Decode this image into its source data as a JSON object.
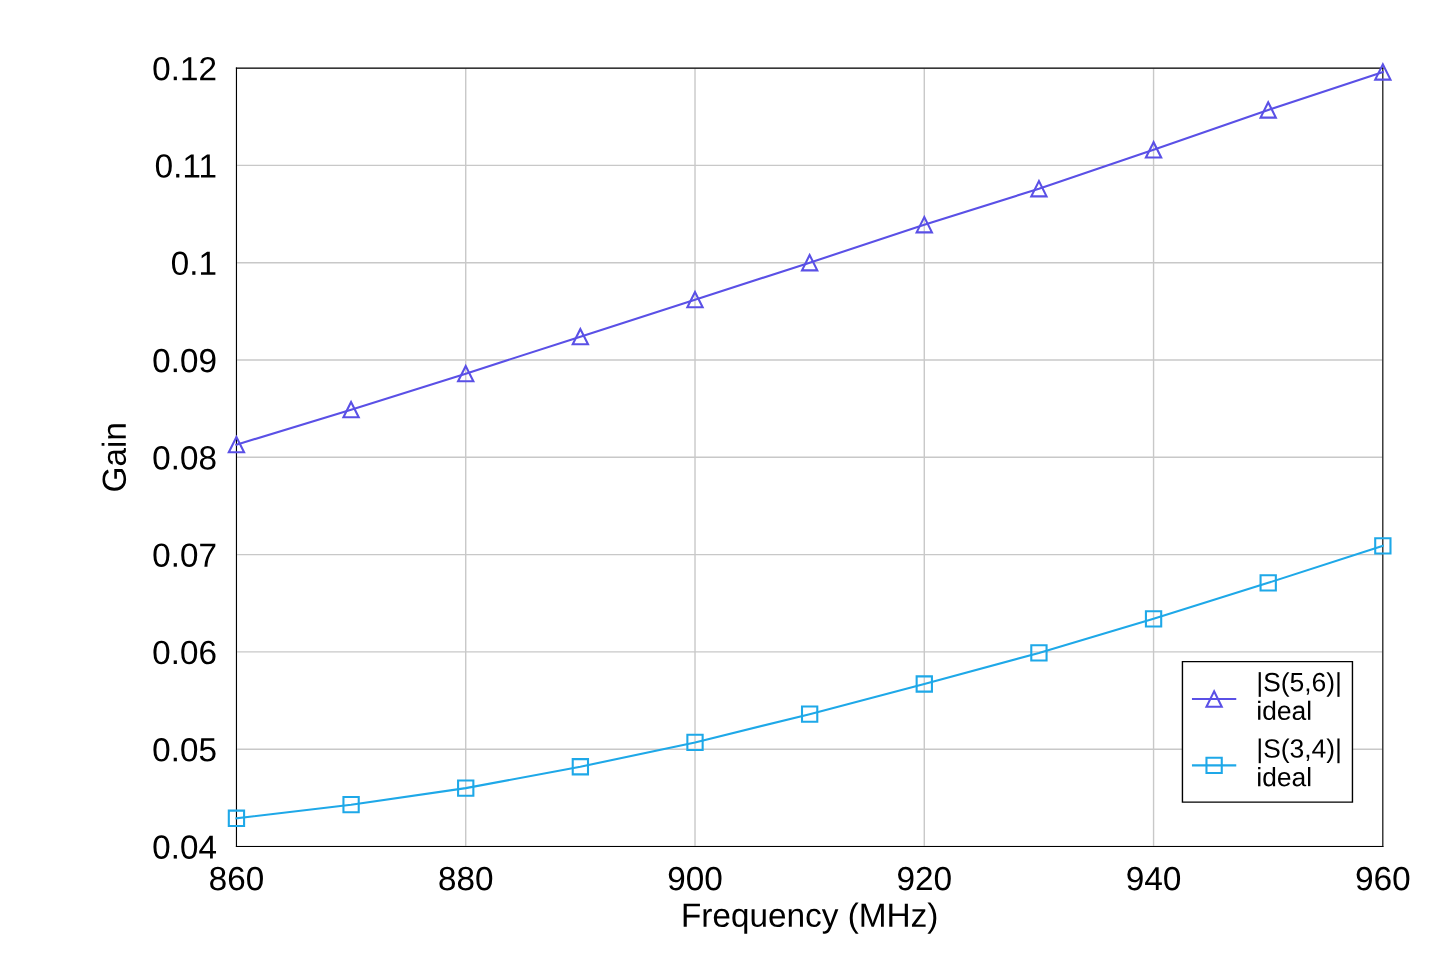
{
  "chart_data": {
    "type": "line",
    "xlabel": "Frequency (MHz)",
    "ylabel": "Gain",
    "x": [
      860,
      870,
      880,
      890,
      900,
      910,
      920,
      930,
      940,
      950,
      960
    ],
    "series": [
      {
        "name": "|S(5,6)|\nideal",
        "color": "#5a50e6",
        "marker": "triangle",
        "values": [
          0.0813,
          0.0849,
          0.0886,
          0.0924,
          0.0962,
          0.1,
          0.1039,
          0.1076,
          0.1116,
          0.1157,
          0.1196
        ]
      },
      {
        "name": "|S(3,4)|\nideal",
        "color": "#1ea8e8",
        "marker": "square",
        "values": [
          0.0429,
          0.0443,
          0.046,
          0.0482,
          0.0507,
          0.0536,
          0.0567,
          0.0599,
          0.0634,
          0.0671,
          0.0709
        ]
      }
    ],
    "xlim": [
      860,
      960
    ],
    "xticks": [
      860,
      880,
      900,
      920,
      940,
      960
    ],
    "ylim": [
      0.04,
      0.12
    ],
    "yticks": [
      0.04,
      0.05,
      0.06,
      0.07,
      0.08,
      0.09,
      0.1,
      0.11,
      0.12
    ],
    "grid": true,
    "legend": "bottom right",
    "line_style": "solid"
  }
}
